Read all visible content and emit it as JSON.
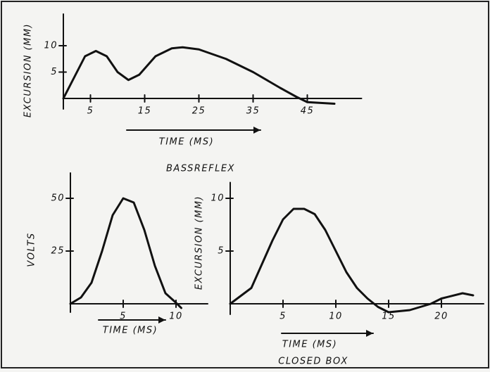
{
  "chart_data": [
    {
      "type": "line",
      "title": "BASSREFLEX",
      "x_label": "TIME (MS)",
      "y_label": "EXCURSION (MM)",
      "x": [
        0,
        2,
        4,
        6,
        8,
        10,
        12,
        14,
        17,
        20,
        22,
        25,
        30,
        35,
        40,
        43,
        45,
        50
      ],
      "values": [
        0,
        4,
        8,
        9,
        8,
        5,
        3.5,
        4.5,
        8,
        9.5,
        9.7,
        9.3,
        7.5,
        5,
        2,
        0.3,
        -0.7,
        -1
      ],
      "xlim": [
        0,
        55
      ],
      "ylim": [
        -2,
        16
      ],
      "xticks": [
        5,
        15,
        25,
        35,
        45
      ],
      "yticks": [
        5,
        10
      ]
    },
    {
      "type": "line",
      "x_label": "TIME (MS)",
      "y_label": "VOLTS",
      "x": [
        0,
        1,
        2,
        3,
        4,
        5,
        6,
        7,
        8,
        9,
        10,
        10.5
      ],
      "values": [
        0,
        3,
        10,
        25,
        42,
        50,
        48,
        35,
        18,
        5,
        0.5,
        -2
      ],
      "xlim": [
        0,
        13
      ],
      "ylim": [
        -4,
        62
      ],
      "xticks": [
        5,
        10
      ],
      "yticks": [
        25,
        50
      ]
    },
    {
      "type": "line",
      "title": "CLOSED BOX",
      "x_label": "TIME (MS)",
      "y_label": "EXCURSION (MM)",
      "x": [
        0,
        2,
        4,
        5,
        6,
        7,
        8,
        9,
        10,
        11,
        12,
        13,
        14,
        15,
        17,
        19,
        20,
        22,
        23
      ],
      "values": [
        0,
        1.5,
        6,
        8,
        9,
        9,
        8.5,
        7,
        5,
        3,
        1.5,
        0.5,
        -0.3,
        -0.8,
        -0.6,
        0,
        0.5,
        1,
        0.8
      ],
      "xlim": [
        0,
        24
      ],
      "ylim": [
        -1,
        11.5
      ],
      "xticks": [
        5,
        10,
        15,
        20
      ],
      "yticks": [
        5,
        10
      ]
    }
  ]
}
